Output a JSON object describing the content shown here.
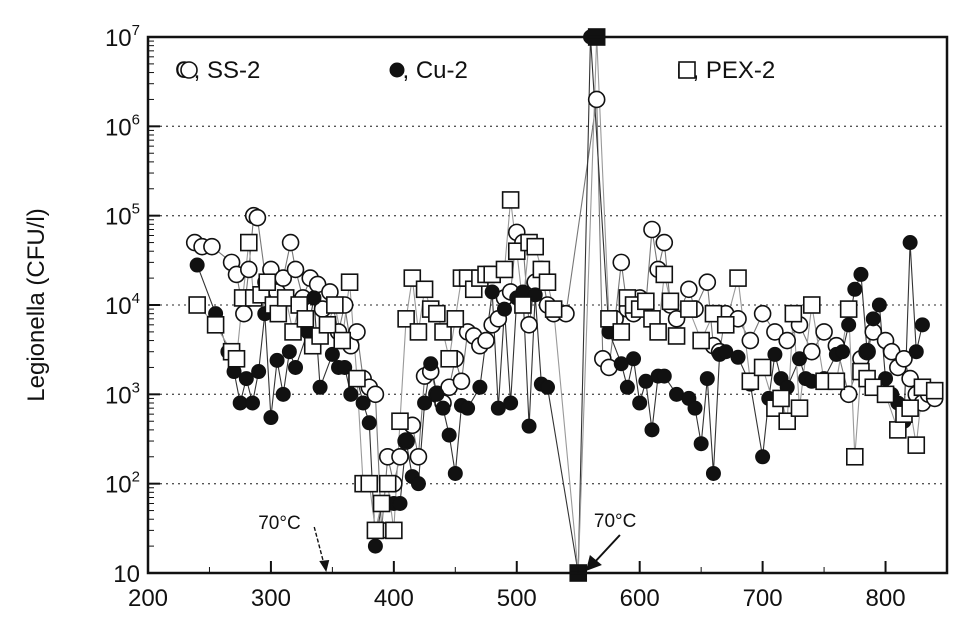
{
  "chart_data": {
    "type": "scatter",
    "title": "",
    "xlabel": "",
    "ylabel": "Legionella (CFU/l)",
    "xlim": [
      200,
      850
    ],
    "ylim": [
      10,
      10000000
    ],
    "yscale": "log",
    "xticks": [
      200,
      300,
      400,
      500,
      600,
      700,
      800
    ],
    "yticks": [
      {
        "value": 10,
        "base": "10",
        "exp": ""
      },
      {
        "value": 100,
        "base": "10",
        "exp": "2"
      },
      {
        "value": 1000,
        "base": "10",
        "exp": "3"
      },
      {
        "value": 10000,
        "base": "10",
        "exp": "4"
      },
      {
        "value": 100000,
        "base": "10",
        "exp": "5"
      },
      {
        "value": 1000000,
        "base": "10",
        "exp": "6"
      },
      {
        "value": 10000000,
        "base": "10",
        "exp": "7"
      }
    ],
    "grid": "horizontal-dotted",
    "legend_position": "top",
    "series": [
      {
        "name": "SS-2",
        "legend_label": "O, SS-2",
        "marker": "open-circle",
        "points": [
          [
            238,
            50000
          ],
          [
            244,
            45000
          ],
          [
            252,
            45000
          ],
          [
            268,
            30000
          ],
          [
            272,
            22000
          ],
          [
            278,
            8000
          ],
          [
            282,
            25000
          ],
          [
            286,
            100000
          ],
          [
            289,
            95000
          ],
          [
            296,
            18000
          ],
          [
            300,
            25000
          ],
          [
            305,
            14000
          ],
          [
            310,
            20000
          ],
          [
            316,
            50000
          ],
          [
            320,
            25000
          ],
          [
            326,
            12000
          ],
          [
            332,
            20000
          ],
          [
            338,
            17000
          ],
          [
            342,
            9000
          ],
          [
            348,
            14000
          ],
          [
            355,
            5000
          ],
          [
            360,
            10000
          ],
          [
            365,
            3500
          ],
          [
            370,
            5000
          ],
          [
            375,
            1500
          ],
          [
            380,
            1200
          ],
          [
            385,
            1000
          ],
          [
            390,
            30
          ],
          [
            395,
            200
          ],
          [
            400,
            100
          ],
          [
            405,
            200
          ],
          [
            410,
            300
          ],
          [
            415,
            450
          ],
          [
            420,
            200
          ],
          [
            425,
            1600
          ],
          [
            430,
            1800
          ],
          [
            435,
            1000
          ],
          [
            440,
            800
          ],
          [
            445,
            1200
          ],
          [
            450,
            2500
          ],
          [
            455,
            1400
          ],
          [
            460,
            5000
          ],
          [
            465,
            4500
          ],
          [
            470,
            3500
          ],
          [
            475,
            4000
          ],
          [
            480,
            6000
          ],
          [
            485,
            7000
          ],
          [
            490,
            12000
          ],
          [
            495,
            14000
          ],
          [
            500,
            65000
          ],
          [
            505,
            50000
          ],
          [
            510,
            6000
          ],
          [
            515,
            18000
          ],
          [
            520,
            25000
          ],
          [
            525,
            10000
          ],
          [
            530,
            8000
          ],
          [
            540,
            8000
          ],
          [
            565,
            2000000
          ],
          [
            570,
            2500
          ],
          [
            575,
            2000
          ],
          [
            580,
            7000
          ],
          [
            585,
            30000
          ],
          [
            590,
            9000
          ],
          [
            595,
            8000
          ],
          [
            600,
            12000
          ],
          [
            605,
            10000
          ],
          [
            610,
            70000
          ],
          [
            615,
            25000
          ],
          [
            620,
            50000
          ],
          [
            625,
            10000
          ],
          [
            630,
            7000
          ],
          [
            640,
            15000
          ],
          [
            645,
            9000
          ],
          [
            655,
            18000
          ],
          [
            660,
            3500
          ],
          [
            665,
            3000
          ],
          [
            670,
            8000
          ],
          [
            680,
            7000
          ],
          [
            690,
            4000
          ],
          [
            700,
            8000
          ],
          [
            710,
            5000
          ],
          [
            720,
            4000
          ],
          [
            730,
            6000
          ],
          [
            740,
            3000
          ],
          [
            750,
            5000
          ],
          [
            760,
            3500
          ],
          [
            770,
            1000
          ],
          [
            780,
            2500
          ],
          [
            785,
            3000
          ],
          [
            790,
            5000
          ],
          [
            800,
            4000
          ],
          [
            805,
            3000
          ],
          [
            810,
            2000
          ],
          [
            815,
            2500
          ],
          [
            820,
            1500
          ],
          [
            825,
            1000
          ],
          [
            830,
            800
          ],
          [
            835,
            1000
          ],
          [
            840,
            900
          ]
        ]
      },
      {
        "name": "Cu-2",
        "legend_label": "●, Cu-2",
        "marker": "filled-circle",
        "points": [
          [
            240,
            28000
          ],
          [
            255,
            8000
          ],
          [
            265,
            3000
          ],
          [
            270,
            1800
          ],
          [
            275,
            800
          ],
          [
            280,
            1500
          ],
          [
            285,
            800
          ],
          [
            290,
            1800
          ],
          [
            295,
            8000
          ],
          [
            300,
            550
          ],
          [
            305,
            2400
          ],
          [
            310,
            1000
          ],
          [
            315,
            3000
          ],
          [
            320,
            2000
          ],
          [
            330,
            5000
          ],
          [
            335,
            12000
          ],
          [
            340,
            1200
          ],
          [
            350,
            2800
          ],
          [
            355,
            2000
          ],
          [
            360,
            2000
          ],
          [
            365,
            1000
          ],
          [
            370,
            1500
          ],
          [
            375,
            800
          ],
          [
            380,
            480
          ],
          [
            385,
            20
          ],
          [
            390,
            60
          ],
          [
            395,
            60
          ],
          [
            400,
            60
          ],
          [
            405,
            60
          ],
          [
            410,
            300
          ],
          [
            415,
            120
          ],
          [
            420,
            100
          ],
          [
            425,
            800
          ],
          [
            430,
            2200
          ],
          [
            435,
            1000
          ],
          [
            440,
            700
          ],
          [
            445,
            350
          ],
          [
            450,
            130
          ],
          [
            455,
            750
          ],
          [
            460,
            700
          ],
          [
            470,
            1200
          ],
          [
            480,
            14000
          ],
          [
            485,
            700
          ],
          [
            490,
            9000
          ],
          [
            495,
            800
          ],
          [
            500,
            12000
          ],
          [
            505,
            14000
          ],
          [
            510,
            440
          ],
          [
            515,
            13000
          ],
          [
            520,
            1300
          ],
          [
            525,
            1200
          ],
          [
            550,
            10
          ],
          [
            560,
            10000000
          ],
          [
            575,
            5000
          ],
          [
            585,
            2200
          ],
          [
            590,
            1200
          ],
          [
            595,
            2500
          ],
          [
            600,
            800
          ],
          [
            605,
            1400
          ],
          [
            610,
            400
          ],
          [
            615,
            1600
          ],
          [
            620,
            1600
          ],
          [
            630,
            1000
          ],
          [
            640,
            900
          ],
          [
            645,
            700
          ],
          [
            650,
            280
          ],
          [
            655,
            1500
          ],
          [
            660,
            130
          ],
          [
            665,
            2800
          ],
          [
            670,
            3000
          ],
          [
            680,
            2600
          ],
          [
            690,
            1300
          ],
          [
            700,
            200
          ],
          [
            705,
            900
          ],
          [
            710,
            2800
          ],
          [
            715,
            1500
          ],
          [
            720,
            1200
          ],
          [
            730,
            2500
          ],
          [
            735,
            1500
          ],
          [
            740,
            1400
          ],
          [
            750,
            1500
          ],
          [
            760,
            2800
          ],
          [
            765,
            3000
          ],
          [
            770,
            6000
          ],
          [
            775,
            15000
          ],
          [
            780,
            22000
          ],
          [
            785,
            3000
          ],
          [
            790,
            7000
          ],
          [
            795,
            10000
          ],
          [
            800,
            1500
          ],
          [
            805,
            1000
          ],
          [
            810,
            800
          ],
          [
            815,
            500
          ],
          [
            820,
            50000
          ],
          [
            825,
            3000
          ],
          [
            830,
            6000
          ]
        ]
      },
      {
        "name": "PEX-2",
        "legend_label": "□, PEX-2",
        "marker": "open-square",
        "points": [
          [
            240,
            10000
          ],
          [
            255,
            6000
          ],
          [
            268,
            3000
          ],
          [
            272,
            2500
          ],
          [
            277,
            12000
          ],
          [
            282,
            50000
          ],
          [
            286,
            12000
          ],
          [
            292,
            13000
          ],
          [
            297,
            18000
          ],
          [
            302,
            10000
          ],
          [
            306,
            8000
          ],
          [
            312,
            12000
          ],
          [
            318,
            5000
          ],
          [
            323,
            10000
          ],
          [
            328,
            7000
          ],
          [
            334,
            3500
          ],
          [
            340,
            4500
          ],
          [
            346,
            6000
          ],
          [
            352,
            10000
          ],
          [
            358,
            4000
          ],
          [
            364,
            18000
          ],
          [
            370,
            1500
          ],
          [
            375,
            100
          ],
          [
            380,
            100
          ],
          [
            385,
            30
          ],
          [
            390,
            60
          ],
          [
            395,
            100
          ],
          [
            400,
            30
          ],
          [
            405,
            500
          ],
          [
            410,
            7000
          ],
          [
            415,
            20000
          ],
          [
            420,
            5000
          ],
          [
            425,
            15000
          ],
          [
            430,
            9000
          ],
          [
            435,
            8000
          ],
          [
            440,
            5000
          ],
          [
            445,
            2500
          ],
          [
            450,
            7000
          ],
          [
            455,
            20000
          ],
          [
            460,
            20000
          ],
          [
            465,
            15000
          ],
          [
            470,
            20000
          ],
          [
            475,
            22000
          ],
          [
            480,
            22000
          ],
          [
            490,
            25000
          ],
          [
            495,
            150000
          ],
          [
            500,
            40000
          ],
          [
            505,
            10000
          ],
          [
            510,
            50000
          ],
          [
            515,
            45000
          ],
          [
            520,
            25000
          ],
          [
            525,
            18000
          ],
          [
            530,
            9000
          ],
          [
            550,
            10
          ],
          [
            565,
            10000000
          ],
          [
            575,
            7000
          ],
          [
            585,
            5000
          ],
          [
            590,
            12000
          ],
          [
            595,
            10000
          ],
          [
            600,
            9000
          ],
          [
            605,
            11000
          ],
          [
            610,
            7000
          ],
          [
            615,
            5000
          ],
          [
            620,
            22000
          ],
          [
            625,
            11000
          ],
          [
            630,
            4500
          ],
          [
            640,
            9000
          ],
          [
            650,
            4000
          ],
          [
            660,
            8000
          ],
          [
            670,
            6000
          ],
          [
            680,
            20000
          ],
          [
            690,
            1400
          ],
          [
            700,
            2000
          ],
          [
            710,
            700
          ],
          [
            715,
            900
          ],
          [
            720,
            500
          ],
          [
            725,
            8000
          ],
          [
            730,
            700
          ],
          [
            740,
            10000
          ],
          [
            750,
            1400
          ],
          [
            760,
            1400
          ],
          [
            770,
            9000
          ],
          [
            775,
            200
          ],
          [
            780,
            1800
          ],
          [
            785,
            1500
          ],
          [
            790,
            1200
          ],
          [
            800,
            1000
          ],
          [
            810,
            400
          ],
          [
            815,
            600
          ],
          [
            820,
            700
          ],
          [
            825,
            270
          ],
          [
            830,
            1200
          ],
          [
            840,
            1100
          ]
        ]
      }
    ],
    "annotations": [
      {
        "text": "70°C",
        "x": 345,
        "y": 10
      },
      {
        "text": "70°C",
        "x": 553,
        "y": 10
      }
    ]
  }
}
